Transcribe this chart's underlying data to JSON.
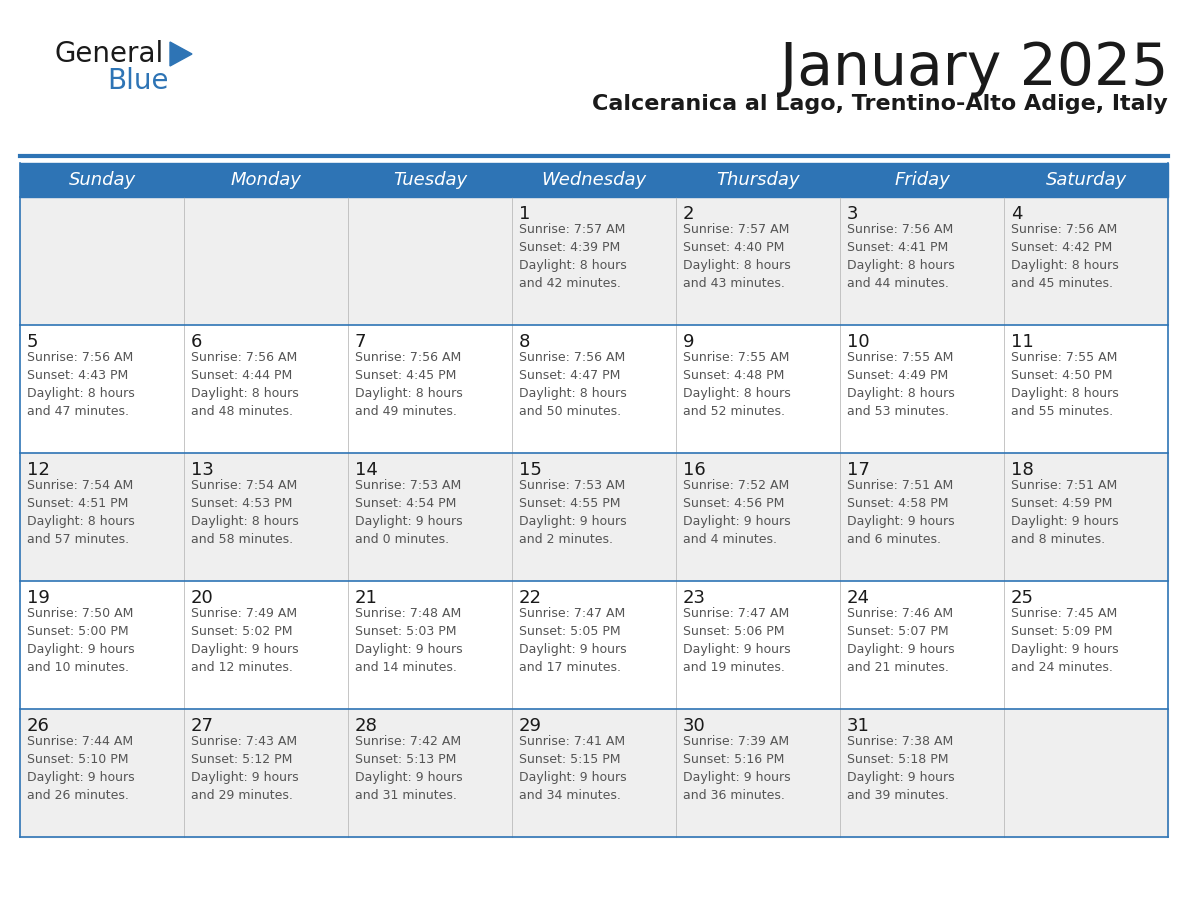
{
  "title": "January 2025",
  "subtitle": "Calceranica al Lago, Trentino-Alto Adige, Italy",
  "header_bg_color": "#2E74B5",
  "header_text_color": "#FFFFFF",
  "weekdays": [
    "Sunday",
    "Monday",
    "Tuesday",
    "Wednesday",
    "Thursday",
    "Friday",
    "Saturday"
  ],
  "title_color": "#1a1a1a",
  "subtitle_color": "#1a1a1a",
  "cell_border_color": "#2E74B5",
  "day_number_color": "#1a1a1a",
  "cell_info_color": "#555555",
  "row_colors": [
    "#EFEFEF",
    "#FFFFFF",
    "#EFEFEF",
    "#FFFFFF",
    "#EFEFEF"
  ],
  "white_bg": "#FFFFFF",
  "logo_general_color": "#1a1a1a",
  "logo_blue_color": "#2E74B5",
  "calendar_data": [
    [
      {
        "day": null,
        "info": ""
      },
      {
        "day": null,
        "info": ""
      },
      {
        "day": null,
        "info": ""
      },
      {
        "day": 1,
        "info": "Sunrise: 7:57 AM\nSunset: 4:39 PM\nDaylight: 8 hours\nand 42 minutes."
      },
      {
        "day": 2,
        "info": "Sunrise: 7:57 AM\nSunset: 4:40 PM\nDaylight: 8 hours\nand 43 minutes."
      },
      {
        "day": 3,
        "info": "Sunrise: 7:56 AM\nSunset: 4:41 PM\nDaylight: 8 hours\nand 44 minutes."
      },
      {
        "day": 4,
        "info": "Sunrise: 7:56 AM\nSunset: 4:42 PM\nDaylight: 8 hours\nand 45 minutes."
      }
    ],
    [
      {
        "day": 5,
        "info": "Sunrise: 7:56 AM\nSunset: 4:43 PM\nDaylight: 8 hours\nand 47 minutes."
      },
      {
        "day": 6,
        "info": "Sunrise: 7:56 AM\nSunset: 4:44 PM\nDaylight: 8 hours\nand 48 minutes."
      },
      {
        "day": 7,
        "info": "Sunrise: 7:56 AM\nSunset: 4:45 PM\nDaylight: 8 hours\nand 49 minutes."
      },
      {
        "day": 8,
        "info": "Sunrise: 7:56 AM\nSunset: 4:47 PM\nDaylight: 8 hours\nand 50 minutes."
      },
      {
        "day": 9,
        "info": "Sunrise: 7:55 AM\nSunset: 4:48 PM\nDaylight: 8 hours\nand 52 minutes."
      },
      {
        "day": 10,
        "info": "Sunrise: 7:55 AM\nSunset: 4:49 PM\nDaylight: 8 hours\nand 53 minutes."
      },
      {
        "day": 11,
        "info": "Sunrise: 7:55 AM\nSunset: 4:50 PM\nDaylight: 8 hours\nand 55 minutes."
      }
    ],
    [
      {
        "day": 12,
        "info": "Sunrise: 7:54 AM\nSunset: 4:51 PM\nDaylight: 8 hours\nand 57 minutes."
      },
      {
        "day": 13,
        "info": "Sunrise: 7:54 AM\nSunset: 4:53 PM\nDaylight: 8 hours\nand 58 minutes."
      },
      {
        "day": 14,
        "info": "Sunrise: 7:53 AM\nSunset: 4:54 PM\nDaylight: 9 hours\nand 0 minutes."
      },
      {
        "day": 15,
        "info": "Sunrise: 7:53 AM\nSunset: 4:55 PM\nDaylight: 9 hours\nand 2 minutes."
      },
      {
        "day": 16,
        "info": "Sunrise: 7:52 AM\nSunset: 4:56 PM\nDaylight: 9 hours\nand 4 minutes."
      },
      {
        "day": 17,
        "info": "Sunrise: 7:51 AM\nSunset: 4:58 PM\nDaylight: 9 hours\nand 6 minutes."
      },
      {
        "day": 18,
        "info": "Sunrise: 7:51 AM\nSunset: 4:59 PM\nDaylight: 9 hours\nand 8 minutes."
      }
    ],
    [
      {
        "day": 19,
        "info": "Sunrise: 7:50 AM\nSunset: 5:00 PM\nDaylight: 9 hours\nand 10 minutes."
      },
      {
        "day": 20,
        "info": "Sunrise: 7:49 AM\nSunset: 5:02 PM\nDaylight: 9 hours\nand 12 minutes."
      },
      {
        "day": 21,
        "info": "Sunrise: 7:48 AM\nSunset: 5:03 PM\nDaylight: 9 hours\nand 14 minutes."
      },
      {
        "day": 22,
        "info": "Sunrise: 7:47 AM\nSunset: 5:05 PM\nDaylight: 9 hours\nand 17 minutes."
      },
      {
        "day": 23,
        "info": "Sunrise: 7:47 AM\nSunset: 5:06 PM\nDaylight: 9 hours\nand 19 minutes."
      },
      {
        "day": 24,
        "info": "Sunrise: 7:46 AM\nSunset: 5:07 PM\nDaylight: 9 hours\nand 21 minutes."
      },
      {
        "day": 25,
        "info": "Sunrise: 7:45 AM\nSunset: 5:09 PM\nDaylight: 9 hours\nand 24 minutes."
      }
    ],
    [
      {
        "day": 26,
        "info": "Sunrise: 7:44 AM\nSunset: 5:10 PM\nDaylight: 9 hours\nand 26 minutes."
      },
      {
        "day": 27,
        "info": "Sunrise: 7:43 AM\nSunset: 5:12 PM\nDaylight: 9 hours\nand 29 minutes."
      },
      {
        "day": 28,
        "info": "Sunrise: 7:42 AM\nSunset: 5:13 PM\nDaylight: 9 hours\nand 31 minutes."
      },
      {
        "day": 29,
        "info": "Sunrise: 7:41 AM\nSunset: 5:15 PM\nDaylight: 9 hours\nand 34 minutes."
      },
      {
        "day": 30,
        "info": "Sunrise: 7:39 AM\nSunset: 5:16 PM\nDaylight: 9 hours\nand 36 minutes."
      },
      {
        "day": 31,
        "info": "Sunrise: 7:38 AM\nSunset: 5:18 PM\nDaylight: 9 hours\nand 39 minutes."
      },
      {
        "day": null,
        "info": ""
      }
    ]
  ]
}
